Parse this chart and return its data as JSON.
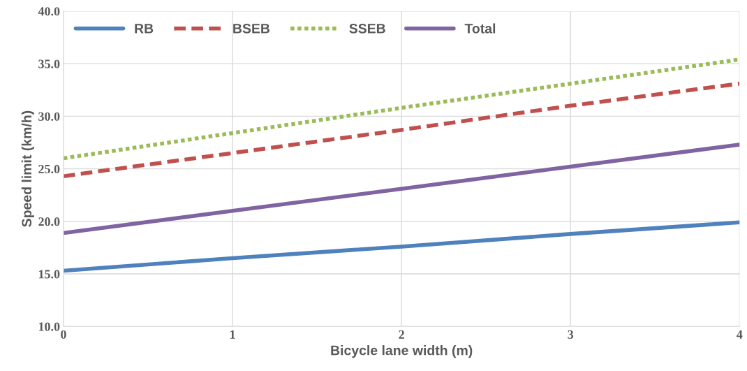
{
  "chart_data": {
    "type": "line",
    "xlabel": "Bicycle lane width (m)",
    "ylabel": "Speed limit (km/h)",
    "x": [
      0,
      1,
      2,
      3,
      4
    ],
    "series": [
      {
        "name": "RB",
        "color": "#4f81bd",
        "line_style": "solid",
        "values": [
          15.3,
          16.5,
          17.6,
          18.8,
          19.9
        ]
      },
      {
        "name": "BSEB",
        "color": "#c0504d",
        "line_style": "dashed",
        "values": [
          24.3,
          26.5,
          28.7,
          31.0,
          33.1
        ]
      },
      {
        "name": "SSEB",
        "color": "#9bbb59",
        "line_style": "dotted",
        "values": [
          26.0,
          28.4,
          30.8,
          33.1,
          35.4
        ]
      },
      {
        "name": "Total",
        "color": "#8064a2",
        "line_style": "solid",
        "values": [
          18.9,
          21.0,
          23.1,
          25.2,
          27.3
        ]
      }
    ],
    "xlim": [
      0,
      4
    ],
    "xticks": [
      0,
      1,
      2,
      3,
      4
    ],
    "ylim": [
      10,
      40
    ],
    "yticks": [
      {
        "value": 10,
        "label": "10.0"
      },
      {
        "value": 15,
        "label": "15.0"
      },
      {
        "value": 20,
        "label": "20.0"
      },
      {
        "value": 25,
        "label": "25.0"
      },
      {
        "value": 30,
        "label": "30.0"
      },
      {
        "value": 35,
        "label": "35.0"
      },
      {
        "value": 40,
        "label": "40.0"
      }
    ],
    "grid": true,
    "legend": "top left",
    "marker": "none"
  }
}
